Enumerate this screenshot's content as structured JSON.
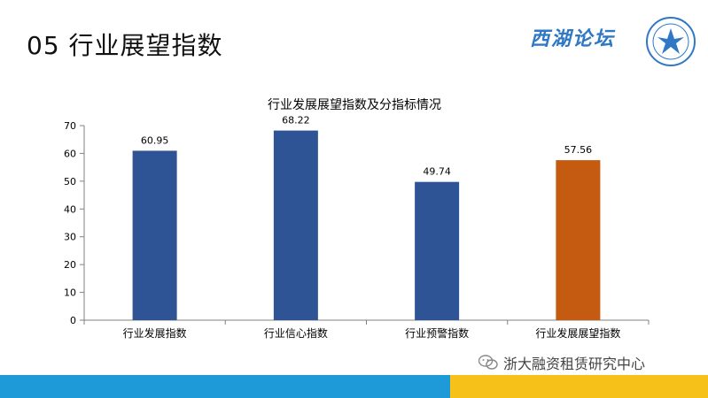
{
  "slide": {
    "title": "05 行业展望指数",
    "logo_text": "西湖论坛"
  },
  "watermark": {
    "text": "浙大融资租赁研究中心"
  },
  "colors": {
    "bar_blue": "#2f5496",
    "bar_orange": "#c55a11",
    "footer_blue": "#1e9ad8",
    "footer_yellow": "#f6c21a"
  },
  "chart_data": {
    "type": "bar",
    "title": "行业发展展望指数及分指标情况",
    "categories": [
      "行业发展指数",
      "行业信心指数",
      "行业预警指数",
      "行业发展展望指数"
    ],
    "values": [
      60.95,
      68.22,
      49.74,
      57.56
    ],
    "value_labels": [
      "60.95",
      "68.22",
      "49.74",
      "57.56"
    ],
    "bar_colors": [
      "#2f5496",
      "#2f5496",
      "#2f5496",
      "#c55a11"
    ],
    "ylim": [
      0,
      70
    ],
    "yticks": [
      "0",
      "10",
      "20",
      "30",
      "40",
      "50",
      "60",
      "70"
    ],
    "grid": false,
    "legend": "none"
  }
}
